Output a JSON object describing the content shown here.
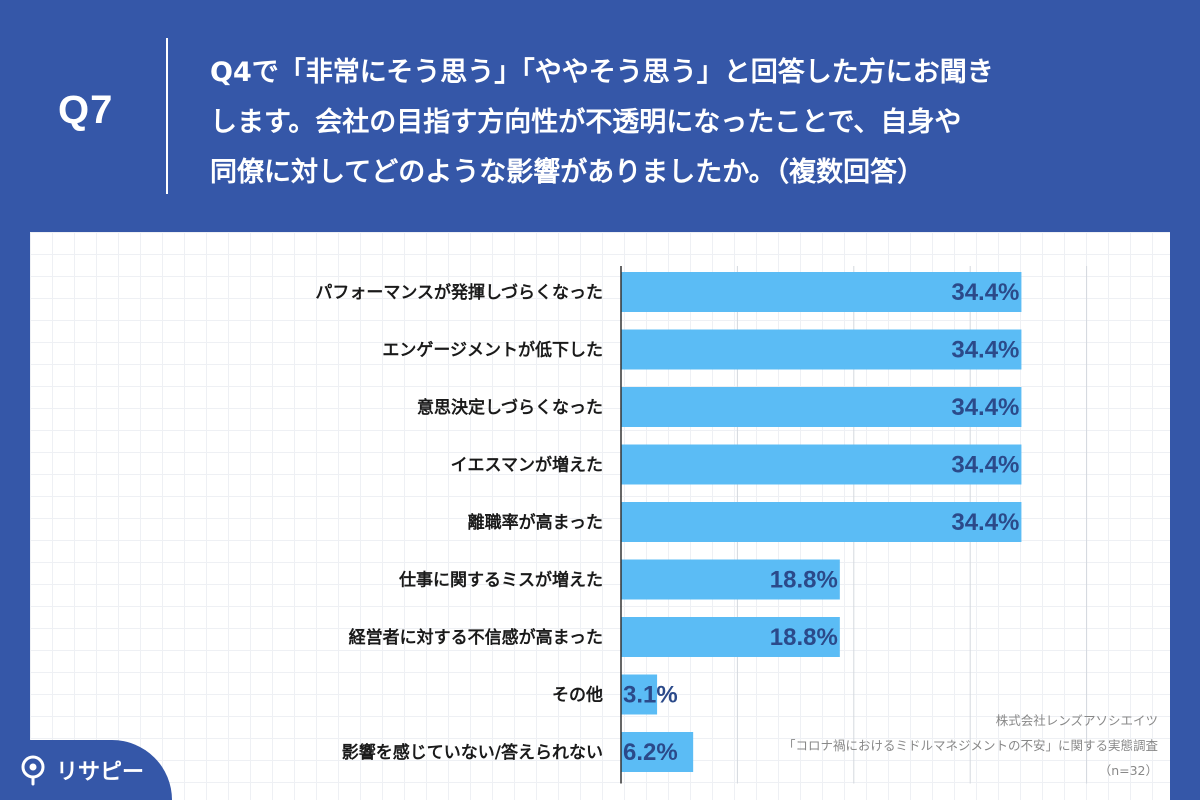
{
  "header": {
    "q_label": "Q7",
    "question_lines": [
      "Q4で「非常にそう思う」「ややそう思う」と回答した方にお聞き",
      "します。会社の目指す方向性が不透明になったことで、自身や",
      "同僚に対してどのような影響がありましたか。（複数回答）"
    ]
  },
  "chart_data": {
    "type": "bar",
    "orientation": "horizontal",
    "categories": [
      "パフォーマンスが発揮しづらくなった",
      "エンゲージメントが低下した",
      "意思決定しづらくなった",
      "イエスマンが増えた",
      "離職率が高まった",
      "仕事に関するミスが増えた",
      "経営者に対する不信感が高まった",
      "その他",
      "影響を感じていない/答えられない"
    ],
    "values": [
      34.4,
      34.4,
      34.4,
      34.4,
      34.4,
      18.8,
      18.8,
      3.1,
      6.2
    ],
    "value_labels": [
      "34.4%",
      "34.4%",
      "34.4%",
      "34.4%",
      "34.4%",
      "18.8%",
      "18.8%",
      "3.1%",
      "6.2%"
    ],
    "xlim": [
      0,
      50
    ],
    "grid": true,
    "bar_color": "#5bbcf5"
  },
  "source": {
    "company": "株式会社レンズアソシエイツ",
    "survey": "「コロナ禍におけるミドルマネジメントの不安」に関する実態調査",
    "n": "（n=32）"
  },
  "brand": {
    "name": "リサピー",
    "icon": "pin-icon"
  },
  "colors": {
    "background": "#3557a8",
    "bar": "#5bbcf5",
    "value_text": "#2b4a8a"
  }
}
